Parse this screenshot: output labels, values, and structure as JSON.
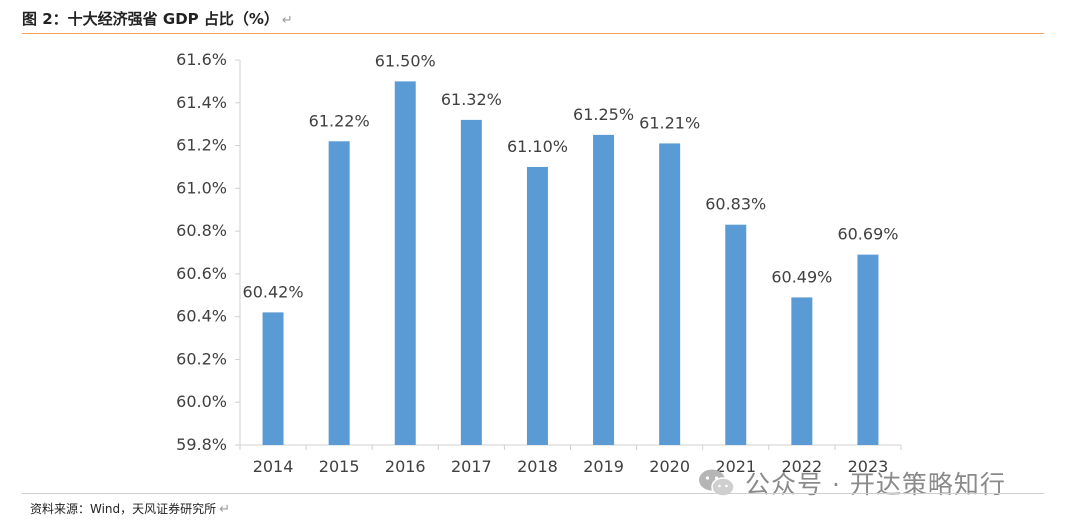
{
  "figure_title": "图 2：十大经济强省 GDP 占比（%）",
  "source_note": "资料来源：Wind，天风证券研究所",
  "watermark_text": "公众号 · 开达策略知行",
  "watermark_icon": "wechat-icon",
  "return_mark": "↵",
  "colors": {
    "bar": "#5b9bd5",
    "title_rule": "#f4a460",
    "axis": "#d0d0d0",
    "text": "#404040"
  },
  "chart_data": {
    "type": "bar",
    "title": "",
    "xlabel": "",
    "ylabel": "",
    "categories": [
      "2014",
      "2015",
      "2016",
      "2017",
      "2018",
      "2019",
      "2020",
      "2021",
      "2022",
      "2023"
    ],
    "values": [
      60.42,
      61.22,
      61.5,
      61.32,
      61.1,
      61.25,
      61.21,
      60.83,
      60.49,
      60.69
    ],
    "data_labels": [
      "60.42%",
      "61.22%",
      "61.50%",
      "61.32%",
      "61.10%",
      "61.25%",
      "61.21%",
      "60.83%",
      "60.49%",
      "60.69%"
    ],
    "ylim": [
      59.8,
      61.6
    ],
    "yticks": [
      59.8,
      60.0,
      60.2,
      60.4,
      60.6,
      60.8,
      61.0,
      61.2,
      61.4,
      61.6
    ],
    "ytick_labels": [
      "59.8%",
      "60.0%",
      "60.2%",
      "60.4%",
      "60.6%",
      "60.8%",
      "61.0%",
      "61.2%",
      "61.4%",
      "61.6%"
    ],
    "grid": false,
    "legend": "none"
  }
}
